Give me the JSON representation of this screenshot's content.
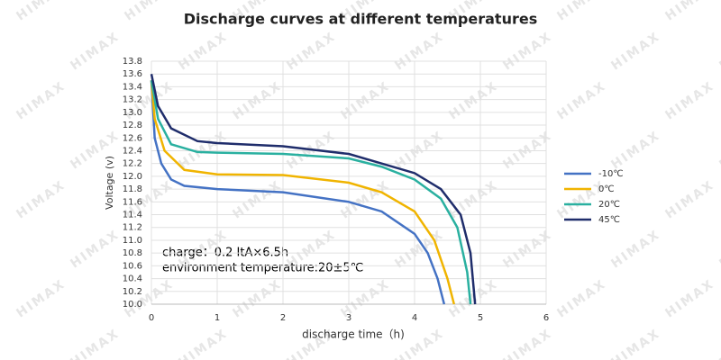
{
  "chart_data": {
    "type": "line",
    "title": "Discharge curves at different temperatures",
    "x_label": "discharge time（h)",
    "y_label": "Voltage (v)",
    "annotations": [
      "charge：0.2 ItA×6.5h",
      "environment temperature:20±5℃"
    ],
    "watermark": "HIMAX",
    "xlim": [
      0,
      6
    ],
    "xticks": [
      0,
      1,
      2,
      3,
      4,
      5,
      6
    ],
    "ylim": [
      10,
      13.8
    ],
    "yticks": [
      {
        "value": 10,
        "label": "10.0"
      },
      10.2,
      10.4,
      10.6,
      10.8,
      {
        "value": 11,
        "label": "11.0"
      },
      11.2,
      11.4,
      11.6,
      11.8,
      {
        "value": 12,
        "label": "12.0"
      },
      12.2,
      12.4,
      12.6,
      12.8,
      {
        "value": 13,
        "label": "13.0"
      },
      13.2,
      13.4,
      13.6,
      13.8
    ],
    "grid": true,
    "legend": "right",
    "series": [
      {
        "name": "-10℃",
        "color": "#4472c4",
        "x": [
          0,
          0.05,
          0.15,
          0.3,
          0.5,
          1,
          2,
          3,
          3.5,
          4,
          4.2,
          4.35,
          4.45
        ],
        "values": [
          13.5,
          12.6,
          12.2,
          11.95,
          11.85,
          11.8,
          11.75,
          11.6,
          11.45,
          11.1,
          10.8,
          10.4,
          10.0
        ]
      },
      {
        "name": "0℃",
        "color": "#f0b400",
        "x": [
          0,
          0.05,
          0.2,
          0.5,
          1,
          2,
          3,
          3.5,
          4,
          4.3,
          4.5,
          4.6
        ],
        "values": [
          13.5,
          12.9,
          12.4,
          12.1,
          12.03,
          12.02,
          11.9,
          11.75,
          11.45,
          11.0,
          10.4,
          10.0
        ]
      },
      {
        "name": "20℃",
        "color": "#2ab0a0",
        "x": [
          0,
          0.1,
          0.3,
          0.7,
          1,
          2,
          3,
          3.5,
          4,
          4.4,
          4.65,
          4.8,
          4.85
        ],
        "values": [
          13.5,
          12.9,
          12.5,
          12.38,
          12.37,
          12.35,
          12.28,
          12.15,
          11.95,
          11.65,
          11.2,
          10.5,
          10.0
        ]
      },
      {
        "name": "45℃",
        "color": "#1f2d6b",
        "x": [
          0,
          0.1,
          0.3,
          0.7,
          1,
          2,
          3,
          3.5,
          4,
          4.4,
          4.7,
          4.85,
          4.92
        ],
        "values": [
          13.6,
          13.1,
          12.75,
          12.55,
          12.52,
          12.47,
          12.35,
          12.2,
          12.05,
          11.8,
          11.4,
          10.8,
          10.0
        ]
      }
    ]
  }
}
